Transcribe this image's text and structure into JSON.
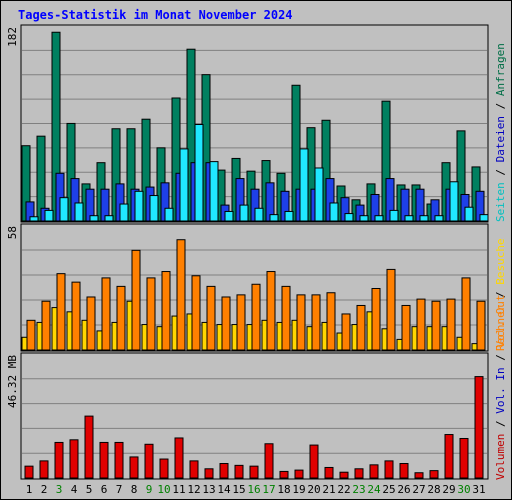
{
  "title": "Tages-Statistik im Monat November 2024",
  "days": [
    "1",
    "2",
    "3",
    "4",
    "5",
    "6",
    "7",
    "8",
    "9",
    "10",
    "11",
    "12",
    "13",
    "14",
    "15",
    "16",
    "17",
    "18",
    "19",
    "20",
    "21",
    "22",
    "23",
    "24",
    "25",
    "26",
    "27",
    "28",
    "29",
    "30",
    "31"
  ],
  "weekend_days": [
    3,
    9,
    10,
    16,
    17,
    23,
    24,
    30
  ],
  "axis": {
    "top_max_label": "182",
    "mid_max_label": "58",
    "bottom_max_label": "46.32 MB"
  },
  "legend": {
    "right_top": [
      {
        "text": "Anfragen",
        "color": "#006e46"
      },
      {
        "text": "Dateien",
        "color": "#0000c0"
      },
      {
        "text": "Seiten",
        "color": "#00c0c0"
      }
    ],
    "right_mid": [
      {
        "text": "Besuche",
        "color": "#ffd700"
      },
      {
        "text": "Rechner",
        "color": "#ff8000"
      }
    ],
    "right_bottom": [
      {
        "text": "Vol. Out",
        "color": "#ff8000"
      },
      {
        "text": "Vol. In",
        "color": "#0000c0"
      },
      {
        "text": "Volumen",
        "color": "#c00000"
      }
    ]
  },
  "chart_data": [
    {
      "type": "bar",
      "title": "Tages-Statistik im Monat November 2024",
      "categories": [
        "1",
        "2",
        "3",
        "4",
        "5",
        "6",
        "7",
        "8",
        "9",
        "10",
        "11",
        "12",
        "13",
        "14",
        "15",
        "16",
        "17",
        "18",
        "19",
        "20",
        "21",
        "22",
        "23",
        "24",
        "25",
        "26",
        "27",
        "28",
        "29",
        "30",
        "31"
      ],
      "ylim": [
        0,
        182
      ],
      "series": [
        {
          "name": "Anfragen",
          "color": "#008060",
          "values": [
            71,
            80,
            178,
            92,
            35,
            55,
            87,
            87,
            96,
            69,
            116,
            162,
            138,
            48,
            59,
            47,
            57,
            45,
            128,
            88,
            95,
            33,
            20,
            35,
            113,
            34,
            34,
            16,
            55,
            85,
            51
          ]
        },
        {
          "name": "Dateien",
          "color": "#1e40e8",
          "values": [
            18,
            12,
            45,
            40,
            30,
            30,
            35,
            30,
            32,
            36,
            45,
            55,
            55,
            15,
            40,
            30,
            36,
            28,
            30,
            30,
            40,
            22,
            15,
            25,
            40,
            30,
            30,
            20,
            30,
            25,
            28
          ]
        },
        {
          "name": "Seiten",
          "color": "#20e8ff",
          "values": [
            4,
            10,
            22,
            17,
            5,
            5,
            16,
            28,
            24,
            12,
            68,
            91,
            56,
            9,
            15,
            12,
            6,
            9,
            68,
            50,
            17,
            7,
            5,
            5,
            10,
            5,
            5,
            5,
            37,
            13,
            6
          ]
        }
      ]
    },
    {
      "type": "bar",
      "categories": [
        "1",
        "2",
        "3",
        "4",
        "5",
        "6",
        "7",
        "8",
        "9",
        "10",
        "11",
        "12",
        "13",
        "14",
        "15",
        "16",
        "17",
        "18",
        "19",
        "20",
        "21",
        "22",
        "23",
        "24",
        "25",
        "26",
        "27",
        "28",
        "29",
        "30",
        "31"
      ],
      "ylim": [
        0,
        58
      ],
      "series": [
        {
          "name": "Besuche",
          "color": "#ffd700",
          "values": [
            6,
            13,
            20,
            18,
            14,
            9,
            13,
            23,
            12,
            11,
            16,
            17,
            13,
            12,
            12,
            12,
            14,
            13,
            14,
            11,
            13,
            8,
            12,
            18,
            10,
            5,
            11,
            11,
            11,
            6,
            3
          ]
        },
        {
          "name": "Rechner",
          "color": "#ff8000",
          "values": [
            14,
            23,
            36,
            32,
            25,
            34,
            30,
            47,
            34,
            37,
            52,
            35,
            30,
            25,
            26,
            31,
            37,
            30,
            26,
            26,
            27,
            17,
            21,
            29,
            38,
            21,
            24,
            23,
            24,
            34,
            23
          ]
        }
      ]
    },
    {
      "type": "bar",
      "categories": [
        "1",
        "2",
        "3",
        "4",
        "5",
        "6",
        "7",
        "8",
        "9",
        "10",
        "11",
        "12",
        "13",
        "14",
        "15",
        "16",
        "17",
        "18",
        "19",
        "20",
        "21",
        "22",
        "23",
        "24",
        "25",
        "26",
        "27",
        "28",
        "29",
        "30",
        "31"
      ],
      "ylim": [
        0,
        46.32
      ],
      "ylabel": "MB",
      "series": [
        {
          "name": "Volumen",
          "color": "#e00000",
          "values": [
            4.5,
            6.5,
            13.5,
            14.5,
            23.5,
            13.5,
            13.5,
            8.0,
            12.8,
            7.2,
            15.2,
            6.5,
            3.5,
            5.5,
            4.8,
            4.5,
            13.0,
            2.5,
            3.0,
            12.5,
            4.0,
            2.2,
            3.5,
            5.0,
            6.5,
            5.5,
            2.0,
            2.8,
            16.5,
            15.0,
            38.5
          ]
        }
      ]
    }
  ]
}
